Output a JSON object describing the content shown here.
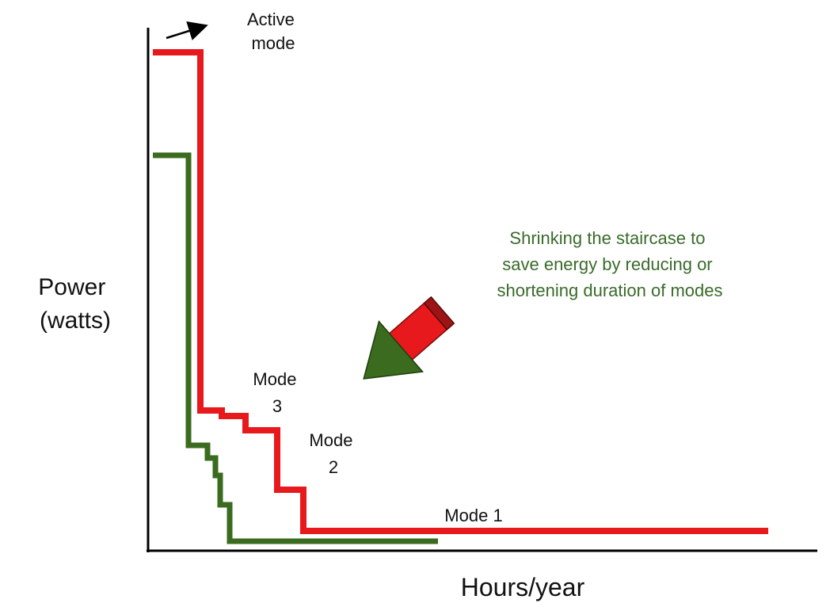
{
  "labels": {
    "active_mode": [
      "Active",
      "mode"
    ],
    "note": [
      "Shrinking the staircase to",
      "save energy by reducing or",
      "shortening duration of modes"
    ],
    "y_axis": [
      "Power",
      "(watts)"
    ],
    "x_axis": "Hours/year",
    "mode3": [
      "Mode",
      "3"
    ],
    "mode2": [
      "Mode",
      "2"
    ],
    "mode1": "Mode 1"
  }
}
